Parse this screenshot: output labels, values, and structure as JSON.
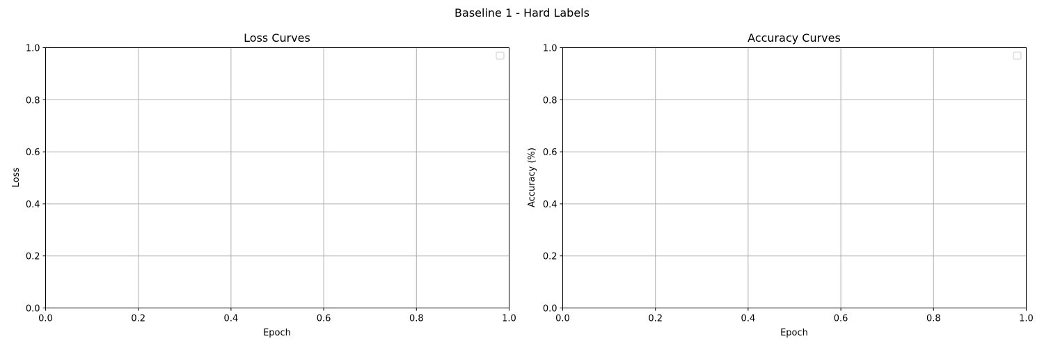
{
  "figure": {
    "suptitle": "Baseline 1 - Hard Labels"
  },
  "chart_data": [
    {
      "type": "line",
      "title": "Loss Curves",
      "xlabel": "Epoch",
      "ylabel": "Loss",
      "xlim": [
        0,
        1
      ],
      "ylim": [
        0,
        1
      ],
      "xticks": [
        "0.0",
        "0.2",
        "0.4",
        "0.6",
        "0.8",
        "1.0"
      ],
      "yticks": [
        "0.0",
        "0.2",
        "0.4",
        "0.6",
        "0.8",
        "1.0"
      ],
      "grid": true,
      "legend": "top-right",
      "series": []
    },
    {
      "type": "line",
      "title": "Accuracy Curves",
      "xlabel": "Epoch",
      "ylabel": "Accuracy (%)",
      "xlim": [
        0,
        1
      ],
      "ylim": [
        0,
        1
      ],
      "xticks": [
        "0.0",
        "0.2",
        "0.4",
        "0.6",
        "0.8",
        "1.0"
      ],
      "yticks": [
        "0.0",
        "0.2",
        "0.4",
        "0.6",
        "0.8",
        "1.0"
      ],
      "grid": true,
      "legend": "top-right",
      "series": []
    }
  ]
}
